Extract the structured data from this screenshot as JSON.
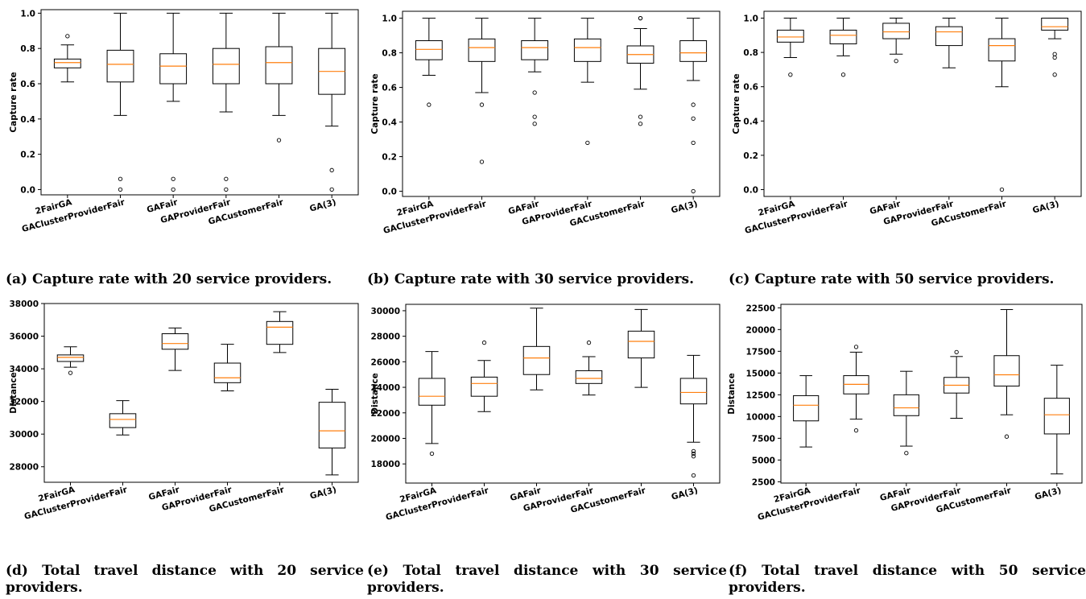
{
  "captions": [
    "(a) Capture rate with 20 service providers.",
    "(b) Capture rate with 30 service providers.",
    "(c) Capture rate with 50 service providers.",
    "(d) Total travel distance with 20 service providers.",
    "(e) Total travel distance with 30 service providers.",
    "(f) Total travel distance with 50 service providers."
  ],
  "colors": {
    "box": "#000000",
    "median": "#ff7f0e",
    "background": "#ffffff"
  },
  "chart_data": [
    {
      "type": "box",
      "ylabel": "Capture rate",
      "ylim": [
        -0.03,
        1.02
      ],
      "yticks": [
        0.0,
        0.2,
        0.4,
        0.6,
        0.8,
        1.0
      ],
      "ytick_labels": [
        "0.0",
        "0.2",
        "0.4",
        "0.6",
        "0.8",
        "1.0"
      ],
      "categories": [
        "2FairGA",
        "GAClusterProviderFair",
        "GAFair",
        "GAProviderFair",
        "GACustomerFair",
        "GA(3)"
      ],
      "boxes": [
        {
          "whislo": 0.61,
          "q1": 0.69,
          "med": 0.72,
          "q3": 0.74,
          "whishi": 0.82,
          "fliers": [
            0.87
          ]
        },
        {
          "whislo": 0.42,
          "q1": 0.61,
          "med": 0.71,
          "q3": 0.79,
          "whishi": 1.0,
          "fliers": [
            0.06,
            0.0
          ]
        },
        {
          "whislo": 0.5,
          "q1": 0.6,
          "med": 0.7,
          "q3": 0.77,
          "whishi": 1.0,
          "fliers": [
            0.06,
            0.0
          ]
        },
        {
          "whislo": 0.44,
          "q1": 0.6,
          "med": 0.71,
          "q3": 0.8,
          "whishi": 1.0,
          "fliers": [
            0.06,
            0.0
          ]
        },
        {
          "whislo": 0.42,
          "q1": 0.6,
          "med": 0.72,
          "q3": 0.81,
          "whishi": 1.0,
          "fliers": [
            0.28
          ]
        },
        {
          "whislo": 0.36,
          "q1": 0.54,
          "med": 0.67,
          "q3": 0.8,
          "whishi": 1.0,
          "fliers": [
            0.11,
            0.0
          ]
        }
      ]
    },
    {
      "type": "box",
      "ylabel": "Capture rate",
      "ylim": [
        -0.03,
        1.04
      ],
      "yticks": [
        0.0,
        0.2,
        0.4,
        0.6,
        0.8,
        1.0
      ],
      "ytick_labels": [
        "0.0",
        "0.2",
        "0.4",
        "0.6",
        "0.8",
        "1.0"
      ],
      "categories": [
        "2FairGA",
        "GAClusterProviderFair",
        "GAFair",
        "GAProviderFair",
        "GACustomerFair",
        "GA(3)"
      ],
      "boxes": [
        {
          "whislo": 0.67,
          "q1": 0.76,
          "med": 0.82,
          "q3": 0.87,
          "whishi": 1.0,
          "fliers": [
            0.5
          ]
        },
        {
          "whislo": 0.57,
          "q1": 0.75,
          "med": 0.83,
          "q3": 0.88,
          "whishi": 1.0,
          "fliers": [
            0.5,
            0.17
          ]
        },
        {
          "whislo": 0.69,
          "q1": 0.76,
          "med": 0.83,
          "q3": 0.87,
          "whishi": 1.0,
          "fliers": [
            0.57,
            0.43,
            0.39
          ]
        },
        {
          "whislo": 0.63,
          "q1": 0.75,
          "med": 0.83,
          "q3": 0.88,
          "whishi": 1.0,
          "fliers": [
            0.28
          ]
        },
        {
          "whislo": 0.59,
          "q1": 0.74,
          "med": 0.79,
          "q3": 0.84,
          "whishi": 0.94,
          "fliers": [
            1.0,
            1.0,
            0.43,
            0.39
          ]
        },
        {
          "whislo": 0.64,
          "q1": 0.75,
          "med": 0.8,
          "q3": 0.87,
          "whishi": 1.0,
          "fliers": [
            0.5,
            0.42,
            0.28,
            0.0
          ]
        }
      ]
    },
    {
      "type": "box",
      "ylabel": "Capture rate",
      "ylim": [
        -0.04,
        1.04
      ],
      "yticks": [
        0.0,
        0.2,
        0.4,
        0.6,
        0.8,
        1.0
      ],
      "ytick_labels": [
        "0.0",
        "0.2",
        "0.4",
        "0.6",
        "0.8",
        "1.0"
      ],
      "categories": [
        "2FairGA",
        "GAClusterProviderFair",
        "GAFair",
        "GAProviderFair",
        "GACustomerFair",
        "GA(3)"
      ],
      "boxes": [
        {
          "whislo": 0.77,
          "q1": 0.86,
          "med": 0.89,
          "q3": 0.93,
          "whishi": 1.0,
          "fliers": [
            0.67
          ]
        },
        {
          "whislo": 0.78,
          "q1": 0.85,
          "med": 0.9,
          "q3": 0.93,
          "whishi": 1.0,
          "fliers": [
            0.67
          ]
        },
        {
          "whislo": 0.79,
          "q1": 0.88,
          "med": 0.92,
          "q3": 0.97,
          "whishi": 1.0,
          "fliers": [
            0.75
          ]
        },
        {
          "whislo": 0.71,
          "q1": 0.84,
          "med": 0.92,
          "q3": 0.95,
          "whishi": 1.0,
          "fliers": []
        },
        {
          "whislo": 0.6,
          "q1": 0.75,
          "med": 0.84,
          "q3": 0.88,
          "whishi": 1.0,
          "fliers": [
            0.0
          ]
        },
        {
          "whislo": 0.88,
          "q1": 0.93,
          "med": 0.95,
          "q3": 1.0,
          "whishi": 1.0,
          "fliers": [
            0.79,
            0.77,
            0.67
          ]
        }
      ]
    },
    {
      "type": "box",
      "ylabel": "Distance",
      "ylim": [
        27050,
        38000
      ],
      "yticks": [
        28000,
        30000,
        32000,
        34000,
        36000,
        38000
      ],
      "ytick_labels": [
        "28000",
        "30000",
        "32000",
        "34000",
        "36000",
        "38000"
      ],
      "categories": [
        "2FairGA",
        "GAClusterProviderFair",
        "GAFair",
        "GAProviderFair",
        "GACustomerFair",
        "GA(3)"
      ],
      "boxes": [
        {
          "whislo": 34100,
          "q1": 34450,
          "med": 34700,
          "q3": 34850,
          "whishi": 35350,
          "fliers": [
            33750
          ]
        },
        {
          "whislo": 29950,
          "q1": 30400,
          "med": 30900,
          "q3": 31250,
          "whishi": 32050,
          "fliers": []
        },
        {
          "whislo": 33900,
          "q1": 35200,
          "med": 35550,
          "q3": 36150,
          "whishi": 36500,
          "fliers": []
        },
        {
          "whislo": 32650,
          "q1": 33150,
          "med": 33450,
          "q3": 34350,
          "whishi": 35500,
          "fliers": []
        },
        {
          "whislo": 35000,
          "q1": 35500,
          "med": 36550,
          "q3": 36900,
          "whishi": 37500,
          "fliers": []
        },
        {
          "whislo": 27500,
          "q1": 29150,
          "med": 30200,
          "q3": 31950,
          "whishi": 32750,
          "fliers": []
        }
      ]
    },
    {
      "type": "box",
      "ylabel": "Distance",
      "ylim": [
        16500,
        30500
      ],
      "yticks": [
        18000,
        20000,
        22000,
        24000,
        26000,
        28000,
        30000
      ],
      "ytick_labels": [
        "18000",
        "20000",
        "22000",
        "24000",
        "26000",
        "28000",
        "30000"
      ],
      "categories": [
        "2FairGA",
        "GAClusterProviderFair",
        "GAFair",
        "GAProviderFair",
        "GACustomerFair",
        "GA(3)"
      ],
      "boxes": [
        {
          "whislo": 19600,
          "q1": 22600,
          "med": 23300,
          "q3": 24700,
          "whishi": 26800,
          "fliers": [
            18800
          ]
        },
        {
          "whislo": 22100,
          "q1": 23300,
          "med": 24300,
          "q3": 24800,
          "whishi": 26100,
          "fliers": [
            27500
          ]
        },
        {
          "whislo": 23800,
          "q1": 25000,
          "med": 26300,
          "q3": 27200,
          "whishi": 30200,
          "fliers": []
        },
        {
          "whislo": 23400,
          "q1": 24300,
          "med": 24700,
          "q3": 25300,
          "whishi": 26400,
          "fliers": [
            27500
          ]
        },
        {
          "whislo": 24000,
          "q1": 26300,
          "med": 27600,
          "q3": 28400,
          "whishi": 30100,
          "fliers": []
        },
        {
          "whislo": 19700,
          "q1": 22700,
          "med": 23600,
          "q3": 24700,
          "whishi": 26500,
          "fliers": [
            19000,
            18800,
            18600,
            17100
          ]
        }
      ]
    },
    {
      "type": "box",
      "ylabel": "Distance",
      "ylim": [
        2350,
        22900
      ],
      "yticks": [
        2500,
        5000,
        7500,
        10000,
        12500,
        15000,
        17500,
        20000,
        22500
      ],
      "ytick_labels": [
        "2500",
        "5000",
        "7500",
        "10000",
        "12500",
        "15000",
        "17500",
        "20000",
        "22500"
      ],
      "categories": [
        "2FairGA",
        "GAClusterProviderFair",
        "GAFair",
        "GAProviderFair",
        "GACustomerFair",
        "GA(3)"
      ],
      "boxes": [
        {
          "whislo": 6500,
          "q1": 9500,
          "med": 11300,
          "q3": 12400,
          "whishi": 14700,
          "fliers": []
        },
        {
          "whislo": 9700,
          "q1": 12600,
          "med": 13700,
          "q3": 14700,
          "whishi": 17400,
          "fliers": [
            18000,
            8400
          ]
        },
        {
          "whislo": 6600,
          "q1": 10100,
          "med": 11000,
          "q3": 12500,
          "whishi": 15200,
          "fliers": [
            5800
          ]
        },
        {
          "whislo": 9800,
          "q1": 12700,
          "med": 13600,
          "q3": 14500,
          "whishi": 16900,
          "fliers": [
            17400
          ]
        },
        {
          "whislo": 10200,
          "q1": 13500,
          "med": 14800,
          "q3": 17000,
          "whishi": 22300,
          "fliers": [
            7700
          ]
        },
        {
          "whislo": 3400,
          "q1": 8000,
          "med": 10200,
          "q3": 12100,
          "whishi": 15900,
          "fliers": []
        }
      ]
    }
  ]
}
